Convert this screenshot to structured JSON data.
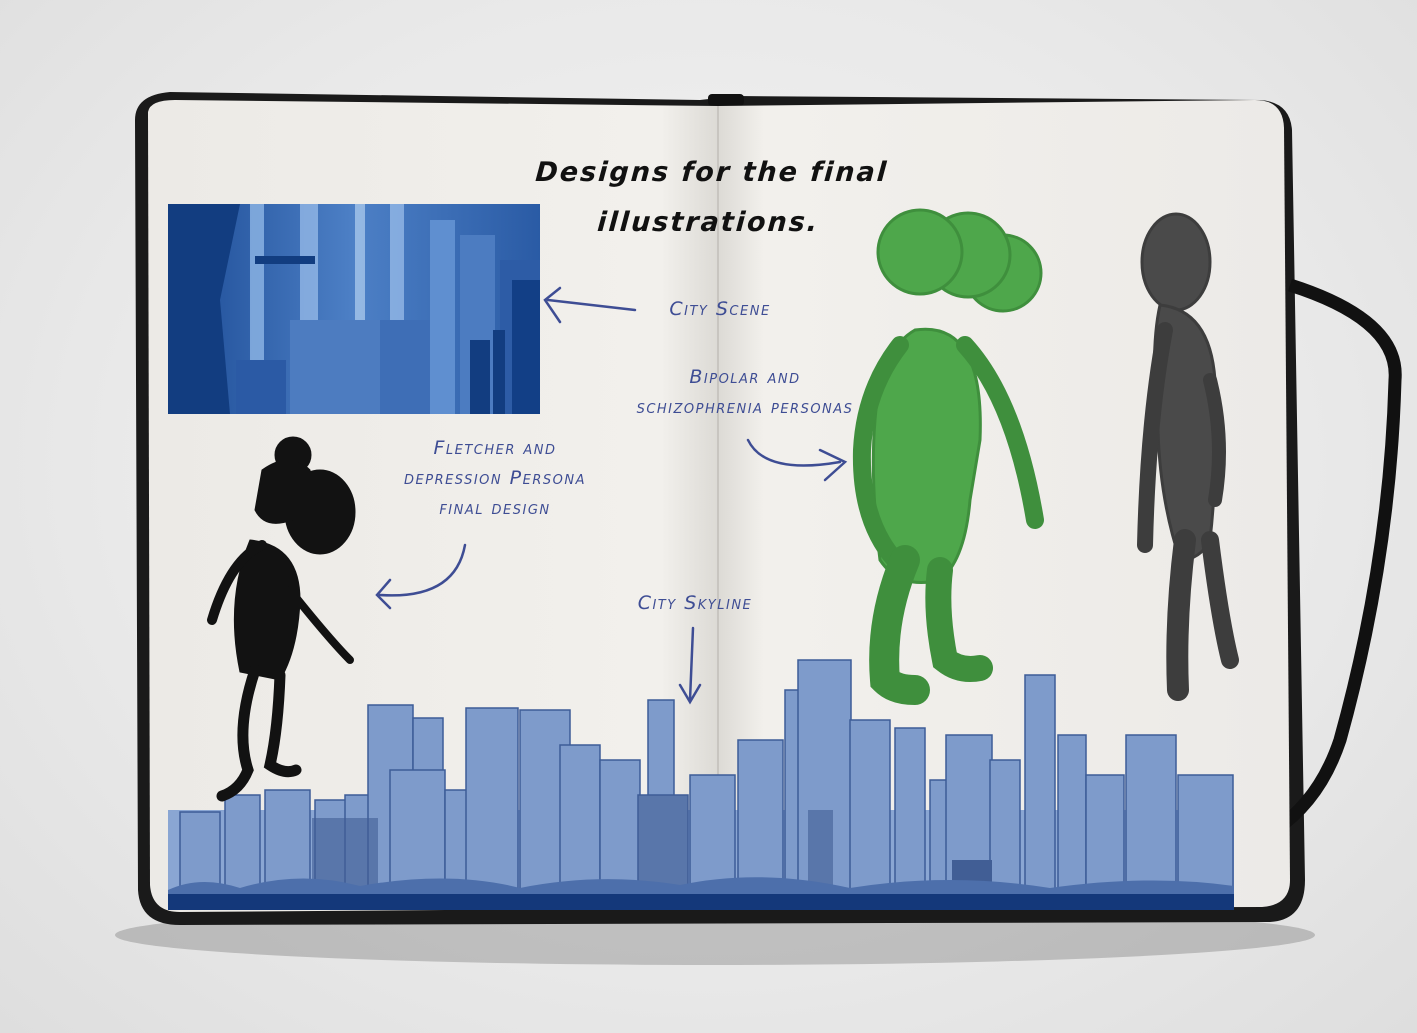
{
  "title": {
    "line1": "Designs for the final",
    "line2": "illustrations."
  },
  "annotations": {
    "city_scene": "City Scene",
    "bipolar_line1": "Bipolar and",
    "bipolar_line2": "schizophrenia personas",
    "fletcher_line1": "Fletcher and",
    "fletcher_line2": "depression Persona",
    "fletcher_line3": "final design",
    "city_skyline": "City Skyline"
  },
  "colors": {
    "ink_blue": "#3e4d94",
    "city_blue": "#1f4f99",
    "skyline_blue": "#7e9bcb",
    "green_persona": "#4ea74b",
    "grey_persona": "#4a4a4a",
    "page": "#f1efec"
  }
}
